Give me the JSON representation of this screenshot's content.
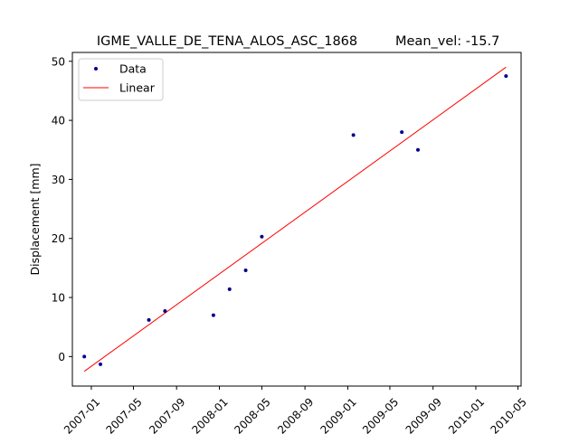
{
  "chart_data": {
    "type": "scatter",
    "title": "IGME_VALLE_DE_TENA_ALOS_ASC_1868",
    "subtitle": "Mean_vel: -15.7",
    "xlabel": "",
    "ylabel": "Displacement [mm]",
    "xlim": [
      "2006-11-08",
      "2010-05-10"
    ],
    "ylim": [
      -5,
      51.5
    ],
    "x_ticks": [
      "2007-01",
      "2007-05",
      "2007-09",
      "2008-01",
      "2008-05",
      "2008-09",
      "2009-01",
      "2009-05",
      "2009-09",
      "2010-01",
      "2010-05"
    ],
    "y_ticks": [
      0,
      10,
      20,
      30,
      40,
      50
    ],
    "legend": {
      "placement": "top-left",
      "entries": [
        "Data",
        "Linear"
      ]
    },
    "colors": {
      "data": "#00008b",
      "linear": "#ff0000"
    },
    "series": [
      {
        "name": "Data",
        "type": "scatter",
        "points": [
          {
            "x": "2006-12-12",
            "y": 0.0
          },
          {
            "x": "2007-01-27",
            "y": -1.3
          },
          {
            "x": "2007-06-14",
            "y": 6.2
          },
          {
            "x": "2007-07-30",
            "y": 7.7
          },
          {
            "x": "2007-12-15",
            "y": 7.0
          },
          {
            "x": "2008-01-30",
            "y": 11.4
          },
          {
            "x": "2008-03-16",
            "y": 14.6
          },
          {
            "x": "2008-05-01",
            "y": 20.3
          },
          {
            "x": "2009-01-17",
            "y": 37.5
          },
          {
            "x": "2009-06-04",
            "y": 38.0
          },
          {
            "x": "2009-07-20",
            "y": 35.0
          },
          {
            "x": "2010-03-28",
            "y": 47.5
          }
        ]
      },
      {
        "name": "Linear",
        "type": "line",
        "points": [
          {
            "x": "2006-12-12",
            "y": -2.5
          },
          {
            "x": "2010-03-28",
            "y": 49.0
          }
        ]
      }
    ]
  }
}
